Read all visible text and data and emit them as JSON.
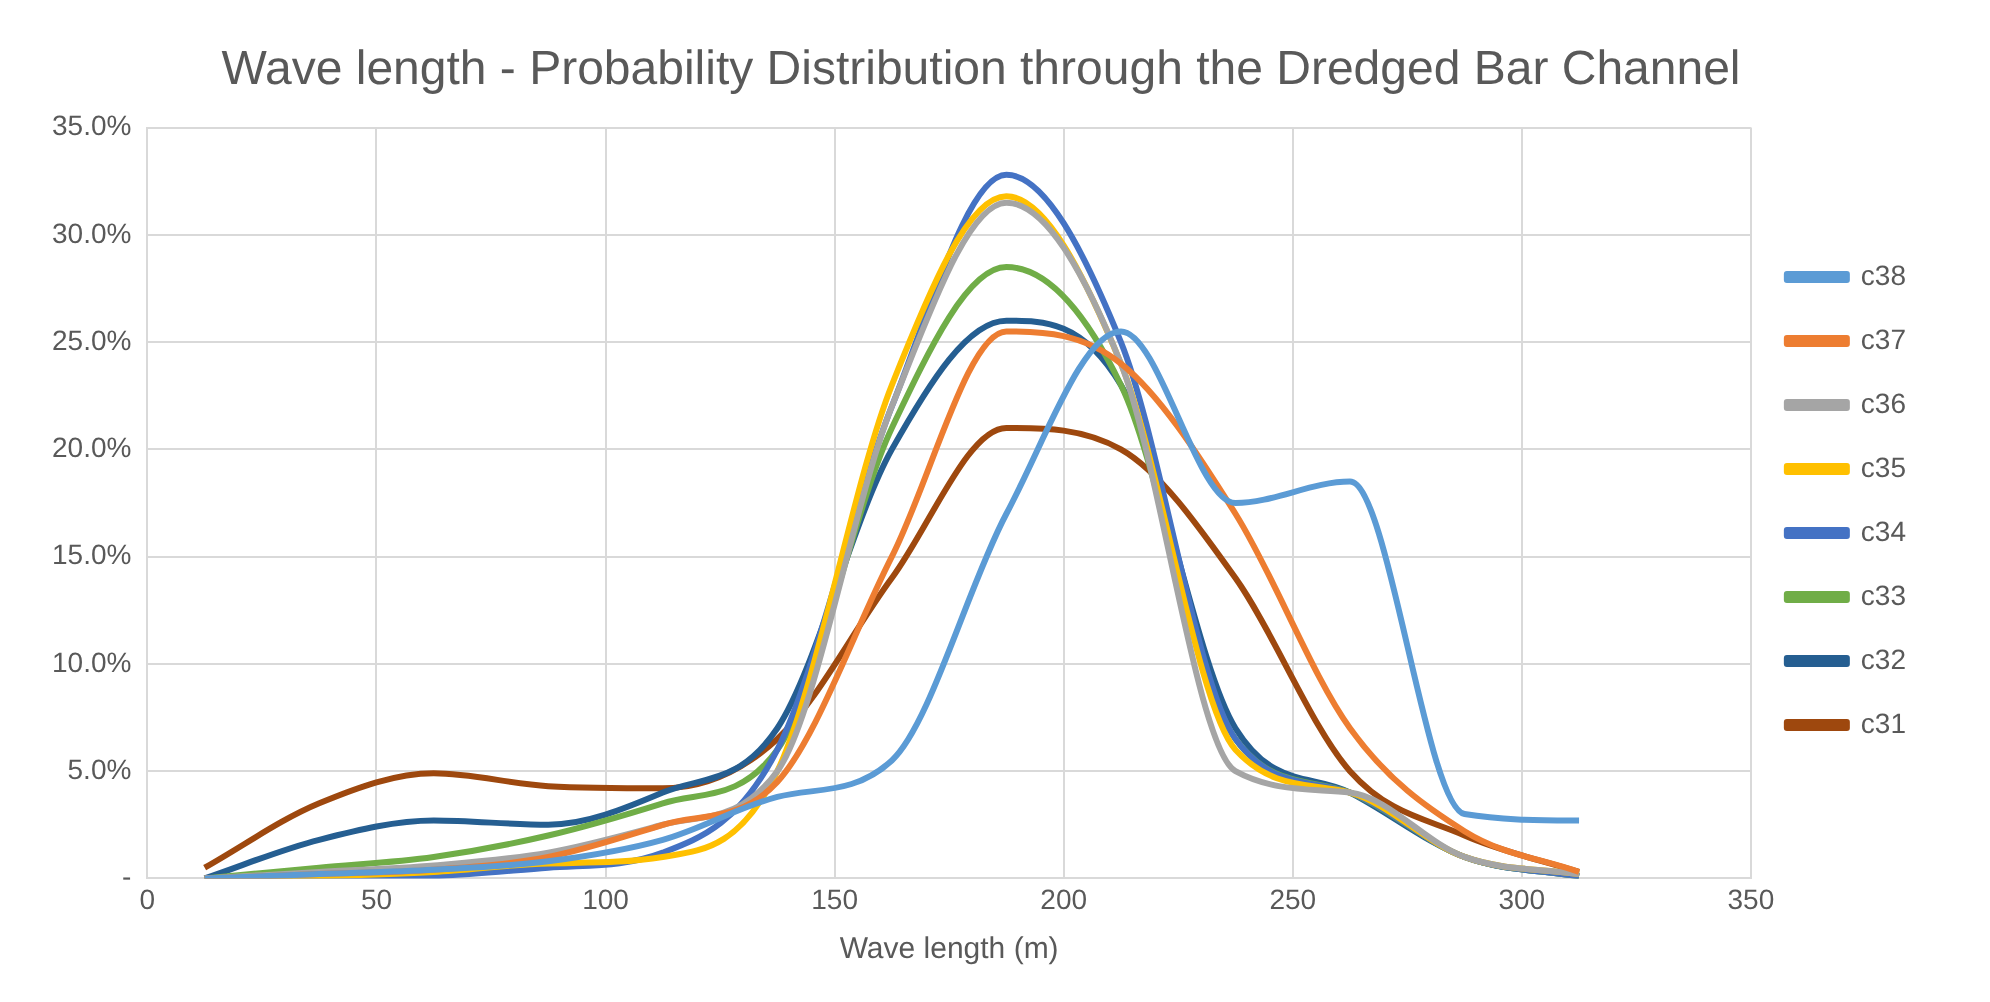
{
  "chart_data": {
    "type": "line",
    "title": "Wave length - Probability Distribution through the Dredged Bar Channel",
    "xlabel": "Wave length (m)",
    "x": [
      12.5,
      37.5,
      62.5,
      87.5,
      112.5,
      137.5,
      162.5,
      187.5,
      212.5,
      237.5,
      262.5,
      287.5,
      312.5
    ],
    "xlim": [
      0,
      350
    ],
    "xticks": [
      0,
      50,
      100,
      150,
      200,
      250,
      300,
      350
    ],
    "ylim": [
      0,
      35
    ],
    "yticks": [
      {
        "value": 0,
        "label": "-"
      },
      {
        "value": 5,
        "label": "5.0%"
      },
      {
        "value": 10,
        "label": "10.0%"
      },
      {
        "value": 15,
        "label": "15.0%"
      },
      {
        "value": 20,
        "label": "20.0%"
      },
      {
        "value": 25,
        "label": "25.0%"
      },
      {
        "value": 30,
        "label": "30.0%"
      },
      {
        "value": 35,
        "label": "35.0%"
      }
    ],
    "grid": true,
    "legend": "right",
    "marker": "none",
    "line_style": "solid",
    "series": [
      {
        "name": "c38",
        "color": "#5b9bd5",
        "values": [
          0,
          0.2,
          0.4,
          0.8,
          1.8,
          3.8,
          5.5,
          17,
          25.5,
          17.5,
          18.5,
          3,
          2.7
        ]
      },
      {
        "name": "c37",
        "color": "#ed7d31",
        "values": [
          0,
          0.2,
          0.4,
          1,
          2.5,
          4.5,
          15,
          25.5,
          24,
          17,
          7,
          2.2,
          0.3
        ]
      },
      {
        "name": "c36",
        "color": "#a5a5a5",
        "values": [
          0,
          0.3,
          0.6,
          1.2,
          2.5,
          5,
          22,
          31.5,
          24,
          5,
          4,
          1,
          0.2
        ]
      },
      {
        "name": "c35",
        "color": "#ffc000",
        "values": [
          0,
          0.1,
          0.3,
          0.7,
          1,
          5,
          23,
          31.8,
          24,
          6,
          4,
          1,
          0.2
        ]
      },
      {
        "name": "c34",
        "color": "#4472c4",
        "values": [
          0,
          0,
          0.1,
          0.5,
          1.2,
          6,
          22,
          32.8,
          25,
          6.5,
          4,
          1,
          0.1
        ]
      },
      {
        "name": "c33",
        "color": "#70ad47",
        "values": [
          0,
          0.5,
          1,
          2,
          3.5,
          6,
          21,
          28.5,
          23,
          6.5,
          4,
          1,
          0.1
        ]
      },
      {
        "name": "c32",
        "color": "#255e91",
        "values": [
          0,
          1.8,
          2.7,
          2.5,
          4,
          7,
          20,
          26,
          23,
          7,
          4,
          1,
          0.1
        ]
      },
      {
        "name": "c31",
        "color": "#9e480e",
        "values": [
          0.5,
          3.5,
          4.9,
          4.3,
          4.2,
          6.5,
          14,
          21,
          20,
          14,
          5,
          2,
          0.3
        ]
      }
    ]
  }
}
